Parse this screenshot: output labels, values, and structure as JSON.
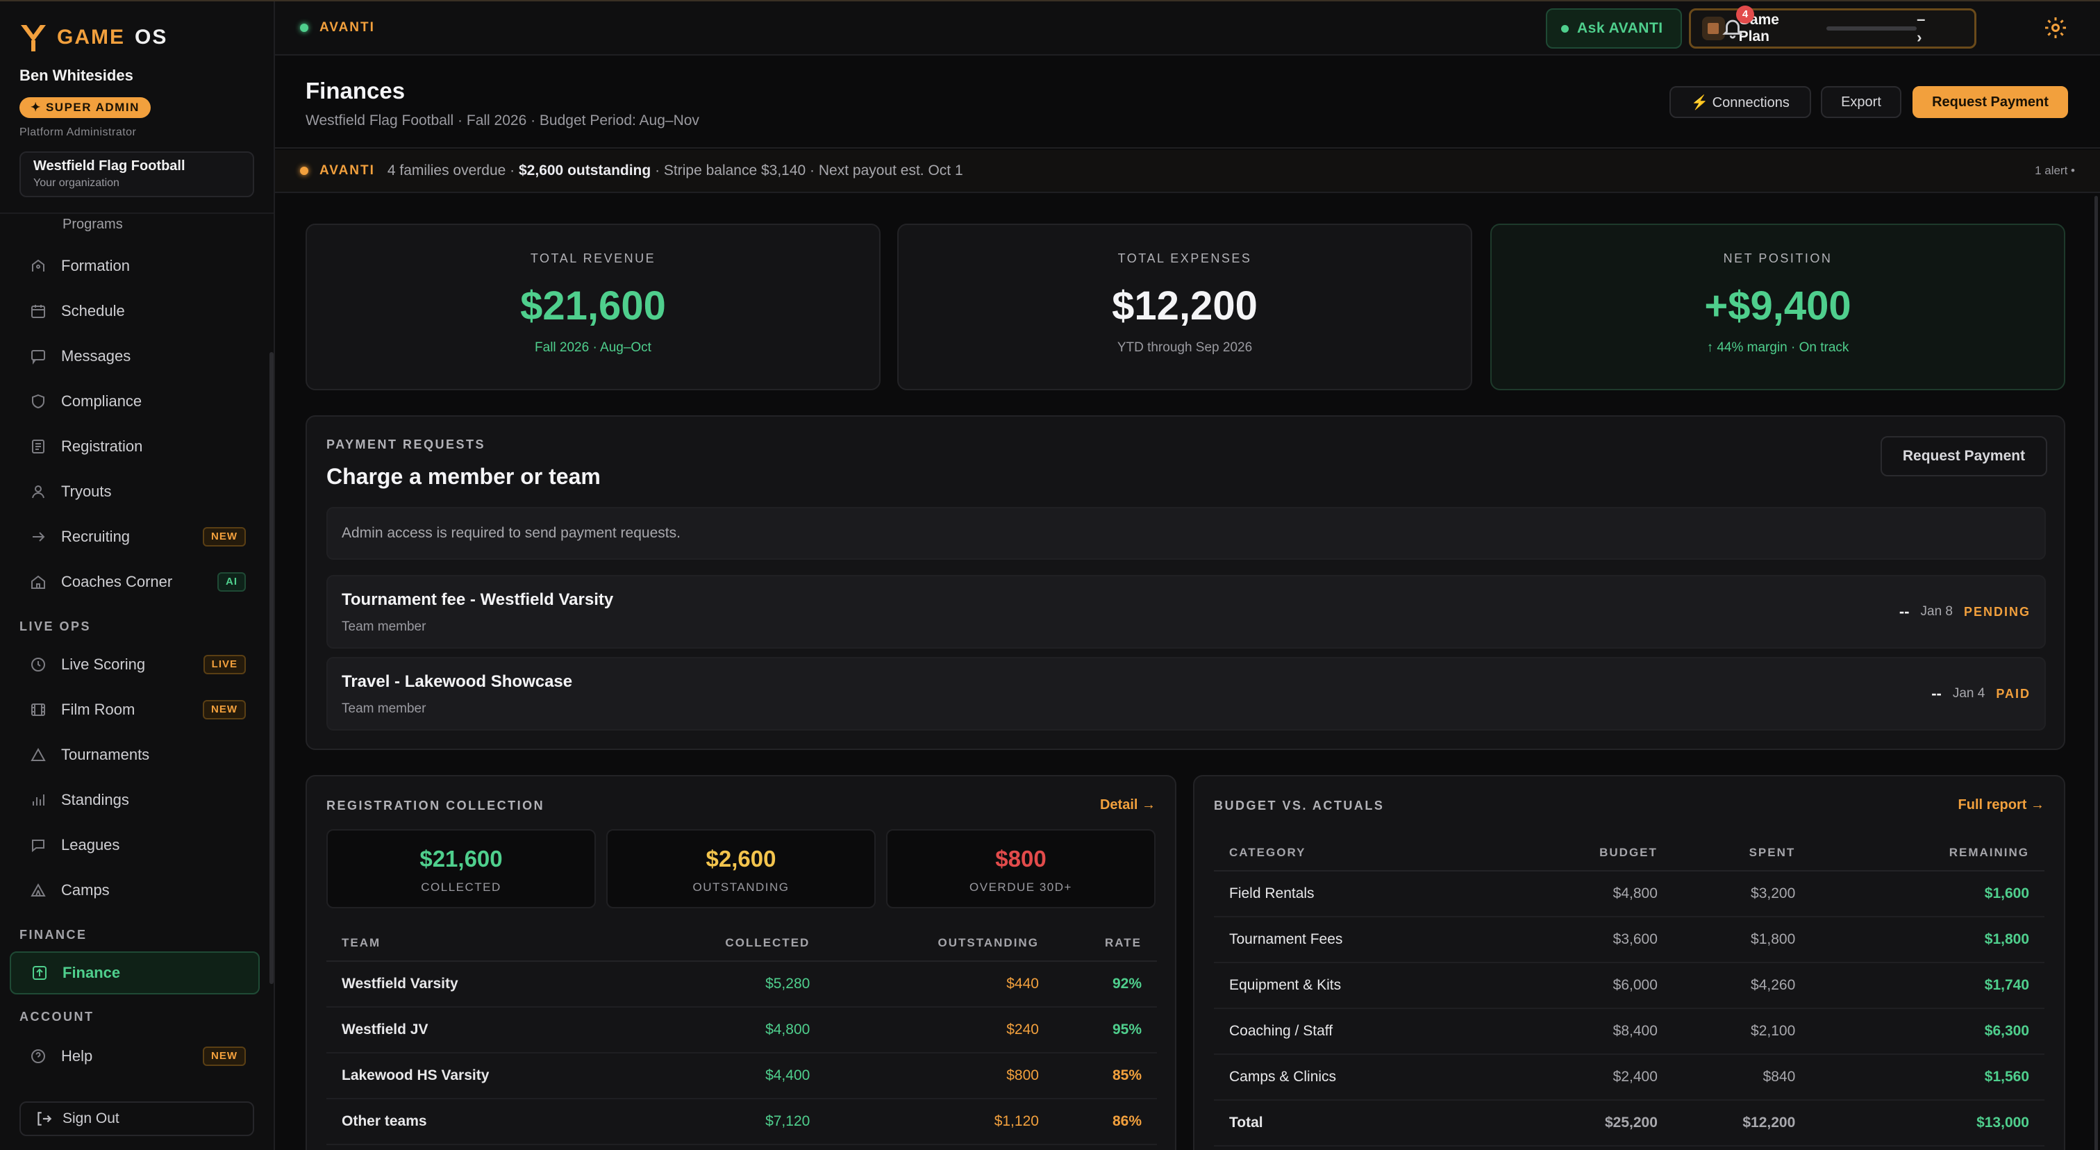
{
  "brand": {
    "word1": "GAME",
    "word2": "OS"
  },
  "user": {
    "name": "Ben Whitesides",
    "badge": "✦ SUPER ADMIN",
    "role": "Platform Administrator"
  },
  "org": {
    "name": "Westfield Flag Football",
    "sub": "Your organization"
  },
  "sidebar": {
    "programs_label": "Programs",
    "items": [
      {
        "label": "Formation",
        "icon": "formation-icon"
      },
      {
        "label": "Schedule",
        "icon": "calendar-icon"
      },
      {
        "label": "Messages",
        "icon": "message-icon"
      },
      {
        "label": "Compliance",
        "icon": "shield-icon"
      },
      {
        "label": "Registration",
        "icon": "clipboard-icon"
      },
      {
        "label": "Tryouts",
        "icon": "user-icon"
      },
      {
        "label": "Recruiting",
        "icon": "arrow-right-icon",
        "tag": "NEW"
      },
      {
        "label": "Coaches Corner",
        "icon": "home-icon",
        "tag": "AI"
      }
    ],
    "live_ops_label": "LIVE OPS",
    "live_items": [
      {
        "label": "Live Scoring",
        "icon": "clock-icon",
        "tag": "LIVE"
      },
      {
        "label": "Film Room",
        "icon": "film-icon",
        "tag": "NEW"
      },
      {
        "label": "Tournaments",
        "icon": "triangle-icon"
      },
      {
        "label": "Standings",
        "icon": "bar-chart-icon"
      },
      {
        "label": "Leagues",
        "icon": "chat-bubble-icon"
      },
      {
        "label": "Camps",
        "icon": "tent-icon"
      }
    ],
    "finance_label": "FINANCE",
    "finance_item": {
      "label": "Finance",
      "icon": "finance-icon"
    },
    "account_label": "ACCOUNT",
    "help_item": {
      "label": "Help",
      "icon": "help-icon",
      "tag": "NEW"
    },
    "sign_out": "Sign Out"
  },
  "topbar": {
    "title": "AVANTI",
    "ask": "Ask AVANTI",
    "game_plan": "Game Plan",
    "game_plan_controls": "– ›",
    "notifications": "4"
  },
  "header": {
    "title": "Finances",
    "subtitle": "Westfield Flag Football · Fall 2026 · Budget Period: Aug–Nov",
    "connections": "⚡ Connections",
    "export": "Export",
    "request_payment": "Request Payment"
  },
  "alert": {
    "tag": "AVANTI",
    "pre": "4 families overdue ·",
    "bold": "$2,600 outstanding",
    "post": "· Stripe balance $3,140 · Next payout est. Oct 1",
    "count": "1 alert •"
  },
  "stats": [
    {
      "label": "TOTAL REVENUE",
      "value": "$21,600",
      "sub": "Fall 2026 · Aug–Oct"
    },
    {
      "label": "TOTAL EXPENSES",
      "value": "$12,200",
      "sub": "YTD through Sep 2026"
    },
    {
      "label": "NET POSITION",
      "value": "+$9,400",
      "sub": "↑ 44% margin · On track"
    }
  ],
  "payment_requests": {
    "kicker": "PAYMENT REQUESTS",
    "title": "Charge a member or team",
    "button": "Request Payment",
    "notice": "Admin access is required to send payment requests.",
    "items": [
      {
        "title": "Tournament fee - Westfield Varsity",
        "sub": "Team member",
        "amount": "--",
        "date": "Jan 8",
        "status": "PENDING"
      },
      {
        "title": "Travel - Lakewood Showcase",
        "sub": "Team member",
        "amount": "--",
        "date": "Jan 4",
        "status": "PAID"
      }
    ]
  },
  "registration": {
    "kicker": "REGISTRATION COLLECTION",
    "link": "Detail →",
    "summary": [
      {
        "value": "$21,600",
        "label": "COLLECTED",
        "color": "#4fcf8d"
      },
      {
        "value": "$2,600",
        "label": "OUTSTANDING",
        "color": "#f3c44d"
      },
      {
        "value": "$800",
        "label": "OVERDUE 30D+",
        "color": "#e24b4b"
      }
    ],
    "columns": [
      "TEAM",
      "COLLECTED",
      "OUTSTANDING",
      "RATE"
    ],
    "rows": [
      [
        "Westfield Varsity",
        "$5,280",
        "$440",
        "92%"
      ],
      [
        "Westfield JV",
        "$4,800",
        "$240",
        "95%"
      ],
      [
        "Lakewood HS Varsity",
        "$4,400",
        "$800",
        "85%"
      ],
      [
        "Other teams",
        "$7,120",
        "$1,120",
        "86%"
      ]
    ]
  },
  "budget": {
    "kicker": "BUDGET VS. ACTUALS",
    "link": "Full report →",
    "columns": [
      "CATEGORY",
      "BUDGET",
      "SPENT",
      "REMAINING"
    ],
    "rows": [
      [
        "Field Rentals",
        "$4,800",
        "$3,200",
        "$1,600"
      ],
      [
        "Tournament Fees",
        "$3,600",
        "$1,800",
        "$1,800"
      ],
      [
        "Equipment & Kits",
        "$6,000",
        "$4,260",
        "$1,740"
      ],
      [
        "Coaching / Staff",
        "$8,400",
        "$2,100",
        "$6,300"
      ],
      [
        "Camps & Clinics",
        "$2,400",
        "$840",
        "$1,560"
      ]
    ],
    "total": [
      "Total",
      "$25,200",
      "$12,200",
      "$13,000"
    ]
  }
}
